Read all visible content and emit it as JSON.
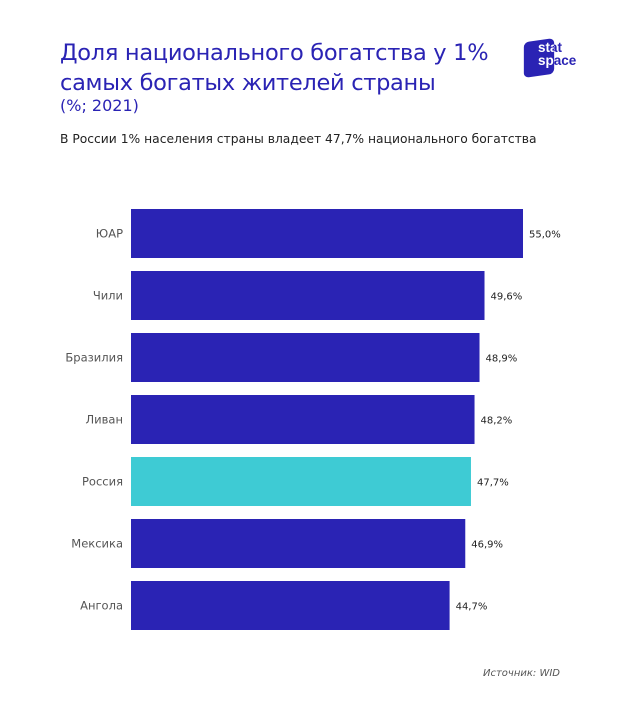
{
  "header": {
    "title": "Доля национального богатства у 1% самых богатых жителей страны",
    "unit": "(%; 2021)",
    "subtitle": "В России 1% населения страны владеет 47,7% национального богатства"
  },
  "logo": {
    "line1": "stat",
    "line2": "space"
  },
  "source": "Источник: WID",
  "colors": {
    "bar": "#2a23b4",
    "highlight": "#3ecbd4",
    "title": "#2a23b4"
  },
  "chart_data": {
    "type": "bar",
    "orientation": "horizontal",
    "categories": [
      "ЮАР",
      "Чили",
      "Бразилия",
      "Ливан",
      "Россия",
      "Мексика",
      "Ангола"
    ],
    "values": [
      55.0,
      49.6,
      48.9,
      48.2,
      47.7,
      46.9,
      44.7
    ],
    "value_labels": [
      "55,0%",
      "49,6%",
      "48,9%",
      "48,2%",
      "47,7%",
      "46,9%",
      "44,7%"
    ],
    "highlight_category": "Россия",
    "title": "",
    "xlabel": "",
    "ylabel": "",
    "xlim": [
      0,
      55.0
    ],
    "grid": false
  }
}
